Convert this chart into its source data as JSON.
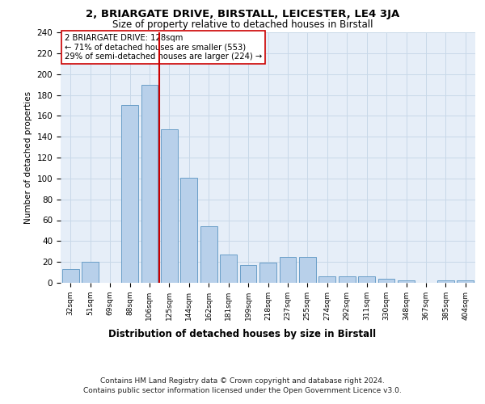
{
  "title1": "2, BRIARGATE DRIVE, BIRSTALL, LEICESTER, LE4 3JA",
  "title2": "Size of property relative to detached houses in Birstall",
  "xlabel": "Distribution of detached houses by size in Birstall",
  "ylabel": "Number of detached properties",
  "categories": [
    "32sqm",
    "51sqm",
    "69sqm",
    "88sqm",
    "106sqm",
    "125sqm",
    "144sqm",
    "162sqm",
    "181sqm",
    "199sqm",
    "218sqm",
    "237sqm",
    "255sqm",
    "274sqm",
    "292sqm",
    "311sqm",
    "330sqm",
    "348sqm",
    "367sqm",
    "385sqm",
    "404sqm"
  ],
  "values": [
    13,
    20,
    0,
    170,
    190,
    147,
    101,
    54,
    27,
    17,
    19,
    25,
    25,
    6,
    6,
    6,
    4,
    2,
    0,
    2,
    2
  ],
  "bar_color": "#b8d0ea",
  "bar_edge_color": "#6a9fc8",
  "vline_color": "#cc0000",
  "vline_x_index": 5,
  "annotation_line1": "2 BRIARGATE DRIVE: 128sqm",
  "annotation_line2": "← 71% of detached houses are smaller (553)",
  "annotation_line3": "29% of semi-detached houses are larger (224) →",
  "annotation_box_edge": "#cc0000",
  "grid_color": "#c8d8e8",
  "background_color": "#e6eef8",
  "footer_line1": "Contains HM Land Registry data © Crown copyright and database right 2024.",
  "footer_line2": "Contains public sector information licensed under the Open Government Licence v3.0.",
  "ylim": [
    0,
    240
  ],
  "yticks": [
    0,
    20,
    40,
    60,
    80,
    100,
    120,
    140,
    160,
    180,
    200,
    220,
    240
  ]
}
